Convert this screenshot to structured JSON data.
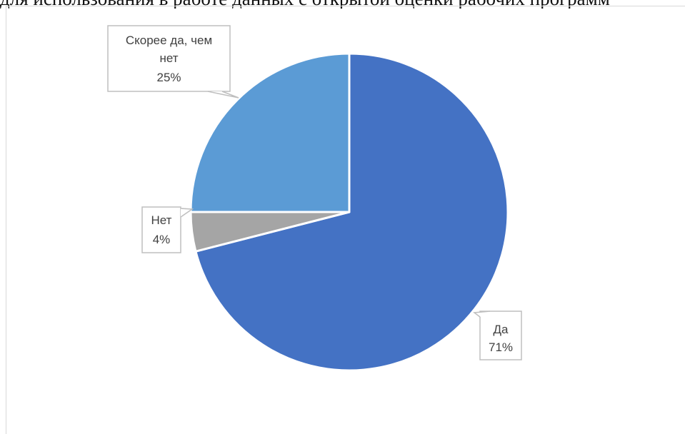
{
  "page": {
    "top_text": "для использования в работе данных с открытой оценки рабочих программ"
  },
  "chart_data": {
    "type": "pie",
    "slices": [
      {
        "label": "Да",
        "label_lines": [
          "Да"
        ],
        "value": 71,
        "value_label": "71%",
        "color": "#4472C4"
      },
      {
        "label": "Нет",
        "label_lines": [
          "Нет"
        ],
        "value": 4,
        "value_label": "4%",
        "color": "#A5A5A5"
      },
      {
        "label": "Скорее да, чем нет",
        "label_lines": [
          "Скорее да, чем",
          "нет"
        ],
        "value": 25,
        "value_label": "25%",
        "color": "#5B9BD5"
      }
    ],
    "start_angle": "12 o'clock, clockwise",
    "legend": "none",
    "data_labels": "callouts"
  }
}
